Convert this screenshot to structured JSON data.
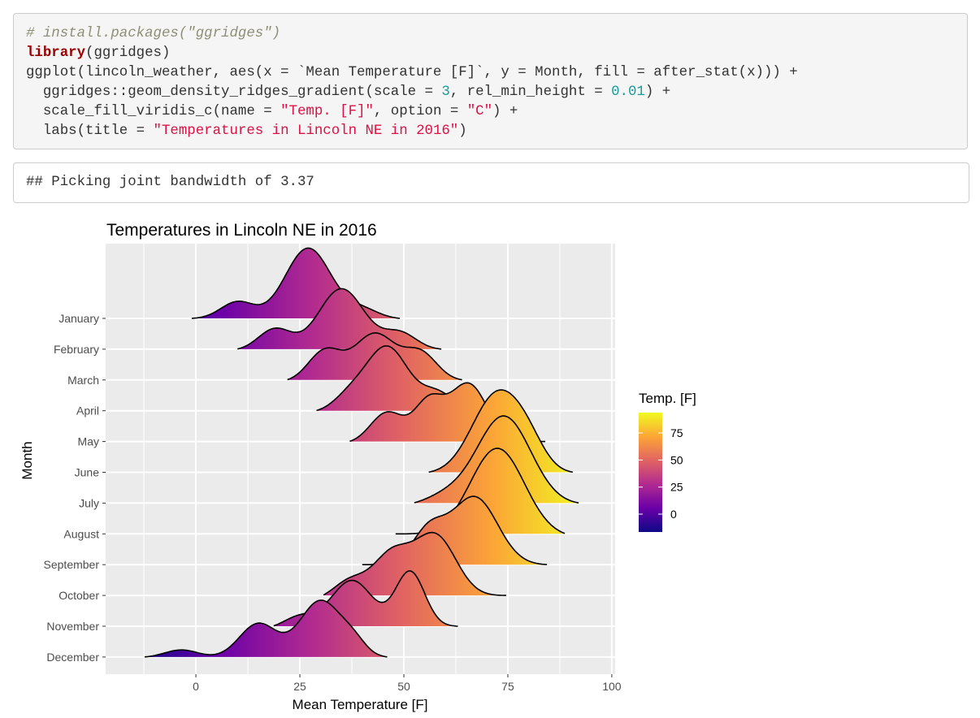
{
  "code_block": {
    "lines": [
      [
        {
          "t": "comment",
          "v": "# install.packages(\"ggridges\")"
        }
      ],
      [
        {
          "t": "kw",
          "v": "library"
        },
        {
          "t": "plain",
          "v": "(ggridges)"
        }
      ],
      [
        {
          "t": "plain",
          "v": "ggplot(lincoln_weather, aes(x = `Mean Temperature [F]`, y = Month, fill = after_stat(x))) +"
        }
      ],
      [
        {
          "t": "plain",
          "v": "  ggridges::geom_density_ridges_gradient(scale = "
        },
        {
          "t": "num",
          "v": "3"
        },
        {
          "t": "plain",
          "v": ", rel_min_height = "
        },
        {
          "t": "num",
          "v": "0.01"
        },
        {
          "t": "plain",
          "v": ") +"
        }
      ],
      [
        {
          "t": "plain",
          "v": "  scale_fill_viridis_c(name = "
        },
        {
          "t": "str",
          "v": "\"Temp. [F]\""
        },
        {
          "t": "plain",
          "v": ", option = "
        },
        {
          "t": "str",
          "v": "\"C\""
        },
        {
          "t": "plain",
          "v": ") +"
        }
      ],
      [
        {
          "t": "plain",
          "v": "  labs(title = "
        },
        {
          "t": "str",
          "v": "\"Temperatures in Lincoln NE in 2016\""
        },
        {
          "t": "plain",
          "v": ")"
        }
      ]
    ]
  },
  "output_block": {
    "text": "## Picking joint bandwidth of 3.37"
  },
  "chart_data": {
    "type": "ridgeline",
    "title": "Temperatures in Lincoln NE in 2016",
    "xlabel": "Mean Temperature [F]",
    "ylabel": "Month",
    "xlim": [
      -21.7,
      100.8
    ],
    "x_ticks": [
      0,
      25,
      50,
      75,
      100
    ],
    "x_tick_labels": [
      "0",
      "25",
      "50",
      "75",
      "100"
    ],
    "scale": 3,
    "grid": true,
    "legend": {
      "title": "Temp. [F]",
      "position": "right",
      "range": [
        -16.5,
        93.8
      ],
      "ticks": [
        75,
        50,
        25,
        0
      ],
      "tick_labels": [
        "75",
        "50",
        "25",
        "0"
      ],
      "colormap": [
        "#0d0887",
        "#6a00a8",
        "#b12a90",
        "#e16462",
        "#fca636",
        "#f0f921"
      ]
    },
    "series": [
      {
        "name": "January",
        "range": [
          -1,
          49
        ],
        "components": [
          [
            10,
            4,
            0.55
          ],
          [
            27,
            5.5,
            2.3
          ],
          [
            40,
            4,
            0.3
          ]
        ]
      },
      {
        "name": "February",
        "range": [
          10,
          59
        ],
        "components": [
          [
            19,
            4,
            0.7
          ],
          [
            35,
            5.5,
            2.0
          ],
          [
            49,
            4,
            0.55
          ]
        ]
      },
      {
        "name": "March",
        "range": [
          22,
          64
        ],
        "components": [
          [
            31,
            4,
            1.0
          ],
          [
            43,
            5,
            1.55
          ],
          [
            54,
            4,
            0.9
          ]
        ]
      },
      {
        "name": "April",
        "range": [
          29,
          70
        ],
        "components": [
          [
            37,
            4,
            0.5
          ],
          [
            46,
            5,
            2.1
          ],
          [
            58,
            4,
            0.6
          ]
        ]
      },
      {
        "name": "May",
        "range": [
          37,
          84
        ],
        "components": [
          [
            46,
            4,
            1.0
          ],
          [
            56,
            3.5,
            1.3
          ],
          [
            65.5,
            4.5,
            1.9
          ]
        ]
      },
      {
        "name": "June",
        "range": [
          56,
          90.6
        ],
        "components": [
          [
            72.5,
            6,
            2.6
          ],
          [
            80,
            4,
            0.6
          ]
        ]
      },
      {
        "name": "July",
        "range": [
          52.5,
          92
        ],
        "components": [
          [
            60,
            5,
            0.3
          ],
          [
            74,
            6.5,
            2.9
          ]
        ]
      },
      {
        "name": "August",
        "range": [
          48,
          88.7
        ],
        "components": [
          [
            72.5,
            6.5,
            2.85
          ]
        ]
      },
      {
        "name": "September",
        "range": [
          40,
          84.4
        ],
        "components": [
          [
            56,
            4,
            1.1
          ],
          [
            67,
            5.5,
            2.2
          ]
        ]
      },
      {
        "name": "October",
        "range": [
          30.7,
          74.6
        ],
        "components": [
          [
            37,
            4,
            0.6
          ],
          [
            47,
            4.5,
            1.4
          ],
          [
            57.5,
            5,
            2.0
          ]
        ]
      },
      {
        "name": "November",
        "range": [
          18.7,
          63
        ],
        "components": [
          [
            25,
            4,
            0.4
          ],
          [
            37.5,
            5,
            1.55
          ],
          [
            51.5,
            3.5,
            1.8
          ]
        ]
      },
      {
        "name": "December",
        "range": [
          -12.3,
          46
        ],
        "components": [
          [
            -3.5,
            4,
            0.25
          ],
          [
            15,
            4.5,
            1.1
          ],
          [
            30,
            5,
            1.85
          ],
          [
            38,
            3,
            0.4
          ]
        ]
      }
    ]
  }
}
